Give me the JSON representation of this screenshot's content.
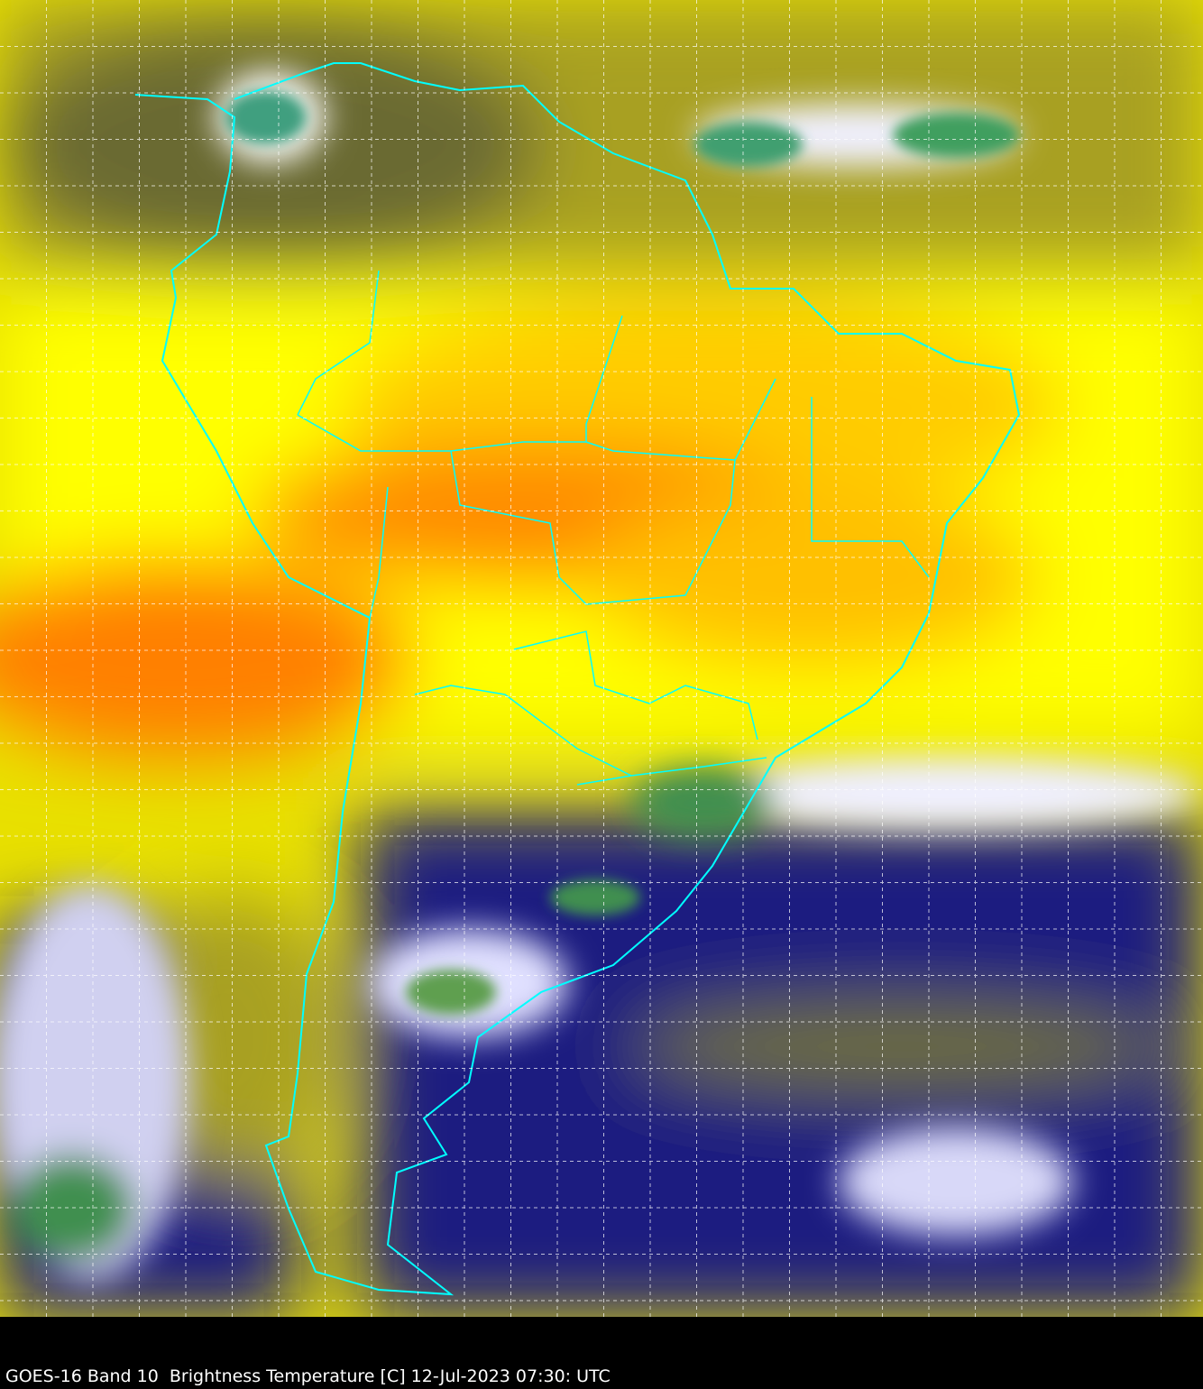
{
  "caption": "GOES-16 Band 10  Brightness Temperature [C] 12-Jul-2023 07:30: UTC",
  "map": {
    "type": "satellite infrared brightness temperature",
    "region": "South America",
    "gridlines": true,
    "colors": {
      "warm": "#ff8800",
      "mid": "#ffff00",
      "dry_olive": "#a8a020",
      "cold_navy": "#14147a",
      "cloud_white": "#f0f0ff",
      "cloud_top_green": "#3f8f4f",
      "border": "#00ffff",
      "grid": "#ffffff",
      "background": "#000000"
    }
  }
}
